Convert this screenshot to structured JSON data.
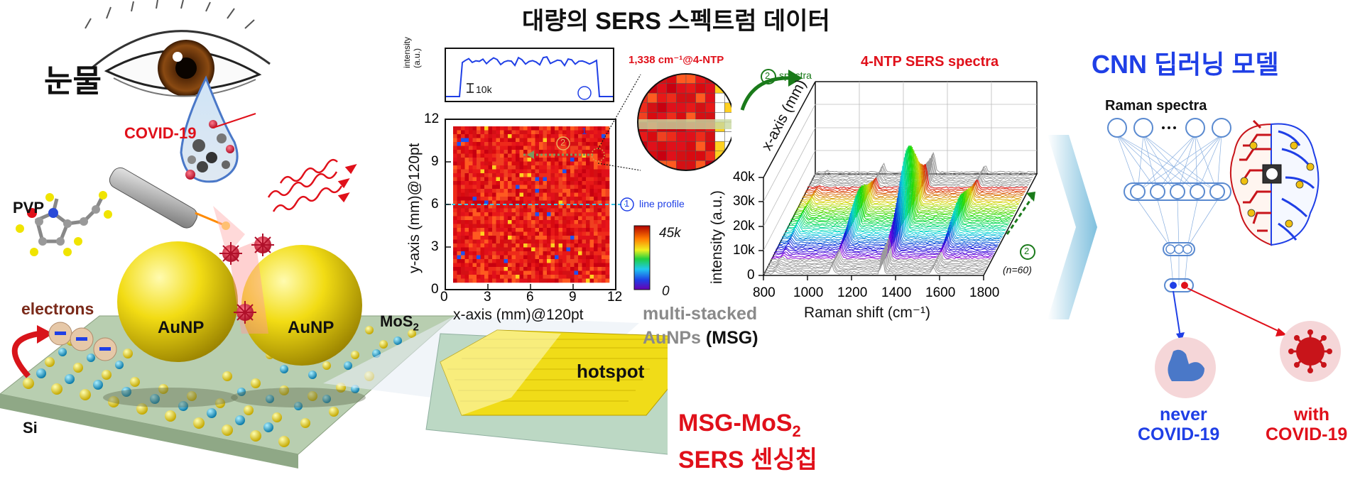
{
  "title": "대량의 SERS 스펙트럼 데이터",
  "left_panel": {
    "tears_label": "눈물",
    "covid_label": "COVID-19",
    "pvp_label": "PVP",
    "electrons_label": "electrons",
    "aunp_left": "AuNP",
    "aunp_right": "AuNP",
    "mos2_label": "MoS",
    "mos2_sub": "2",
    "si_label": "Si"
  },
  "chip": {
    "hotspot_label": "hotspot",
    "msg_label_line1": "multi-stacked",
    "msg_label_line2": "AuNPs",
    "msg_abbrev": "(MSG)",
    "chip_title_line1": "MSG-MoS",
    "chip_title_sub": "2",
    "chip_title_line2": "SERS 센싱칩"
  },
  "map": {
    "line_profile_ylabel_1": "intensity",
    "line_profile_ylabel_2": "(a.u.)",
    "scale_label": "10k",
    "marker_1": "1",
    "marker_2": "2",
    "line_profile_label": "line profile",
    "zoom_label": "1,338 cm⁻¹@4-NTP",
    "colorbar_max": "45k",
    "colorbar_min": "0"
  },
  "spectra": {
    "title": "4-NTP SERS spectra",
    "spectra_arrow_label": "spectra",
    "n_label": "(n=60)",
    "x_axis_depth_label": "x-axis (mm)"
  },
  "cnn": {
    "title": "CNN 딥러닝 모델",
    "input_label": "Raman spectra",
    "outcome_neg_1": "never",
    "outcome_neg_2": "COVID-19",
    "outcome_pos_1": "with",
    "outcome_pos_2": "COVID-19",
    "colors": {
      "blue": "#1f3fe6",
      "red": "#e0101a"
    }
  },
  "chart_data": [
    {
      "type": "heatmap",
      "xlabel": "x-axis (mm)@120pt",
      "ylabel": "y-axis (mm)@120pt",
      "xlim": [
        0,
        12
      ],
      "ylim": [
        0,
        12
      ],
      "x_ticks": [
        "0",
        "3",
        "6",
        "9",
        "12"
      ],
      "y_ticks": [
        "0",
        "3",
        "6",
        "9",
        "12"
      ],
      "color_range": [
        0,
        45000
      ],
      "line_profile_y": 6
    },
    {
      "type": "line",
      "title": "4-NTP SERS spectra",
      "xlabel": "Raman shift (cm⁻¹)",
      "ylabel": "intensity (a.u.)",
      "xlim": [
        800,
        1800
      ],
      "ylim": [
        0,
        40000
      ],
      "x_ticks": [
        "800",
        "1000",
        "1200",
        "1400",
        "1600",
        "1800"
      ],
      "y_ticks": [
        "0",
        "10k",
        "20k",
        "30k",
        "40k"
      ],
      "series_count": 60,
      "peaks": [
        1110,
        1338,
        1572
      ]
    }
  ]
}
